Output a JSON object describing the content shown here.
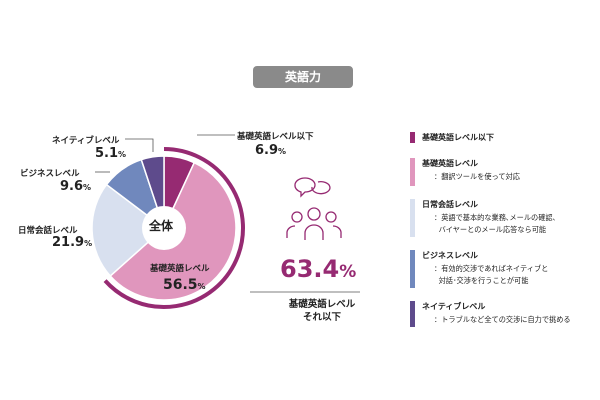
{
  "chart_data": {
    "type": "pie",
    "title": "英語力",
    "center_label": "全体",
    "slices": [
      {
        "label": "基礎英語レベル以下",
        "value": 6.9,
        "display": "6.9",
        "color": "#962a72"
      },
      {
        "label": "基礎英語レベル",
        "value": 56.5,
        "display": "56.5",
        "color": "#e096bd"
      },
      {
        "label": "日常会話レベル",
        "value": 21.9,
        "display": "21.9",
        "color": "#d8e0ef"
      },
      {
        "label": "ビジネスレベル",
        "value": 9.6,
        "display": "9.6",
        "color": "#7088bd"
      },
      {
        "label": "ネイティブレベル",
        "value": 5.1,
        "display": "5.1",
        "color": "#5e4b8c"
      }
    ],
    "highlight": {
      "value": 63.4,
      "display": "63.4",
      "label_line1": "基礎英語レベル",
      "label_line2": "それ以下",
      "color": "#962a72"
    },
    "percent_sign": "%"
  },
  "legend": [
    {
      "title": "基礎英語レベル以下",
      "desc": ""
    },
    {
      "title": "基礎英語レベル",
      "desc": "：翻訳ツールを使って対応"
    },
    {
      "title": "日常会話レベル",
      "desc": "：英語で基本的な業務､メールの確認､\n  バイヤーとのメール応答なら可能"
    },
    {
      "title": "ビジネスレベル",
      "desc": "：有効的交渉であればネイティブと\n  対話･交渉を行うことが可能"
    },
    {
      "title": "ネイティブレベル",
      "desc": "：トラブルなど全ての交渉に自力で挑める"
    }
  ]
}
